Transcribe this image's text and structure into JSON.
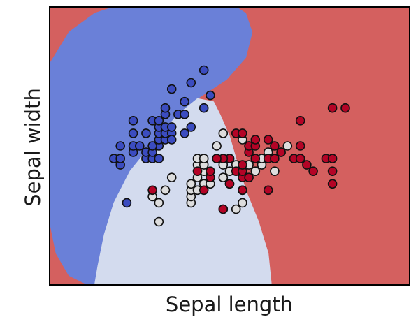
{
  "chart_data": {
    "type": "scatter",
    "title": "",
    "xlabel": "Sepal length",
    "ylabel": "Sepal width",
    "xlim": [
      3.3,
      8.9
    ],
    "ylim": [
      1.0,
      5.4
    ],
    "show_ticks": false,
    "grid": false,
    "legend": "none",
    "classes": [
      {
        "region_color": "#6a80d8",
        "point_color": "#3b4cc0"
      },
      {
        "region_color": "#d3dbee",
        "point_color": "#dddddd"
      },
      {
        "region_color": "#d4605f",
        "point_color": "#b40426"
      }
    ],
    "decision_regions": [
      {
        "class": 0,
        "polygon": [
          [
            3.3,
            2.8
          ],
          [
            3.3,
            4.5
          ],
          [
            3.6,
            5.0
          ],
          [
            4.0,
            5.3
          ],
          [
            4.3,
            5.4
          ],
          [
            6.2,
            5.4
          ],
          [
            6.35,
            5.3
          ],
          [
            6.45,
            5.0
          ],
          [
            6.35,
            4.6
          ],
          [
            6.05,
            4.25
          ],
          [
            5.6,
            3.95
          ],
          [
            5.3,
            3.7
          ],
          [
            4.95,
            3.3
          ],
          [
            4.55,
            2.8
          ],
          [
            4.3,
            2.3
          ],
          [
            4.15,
            1.8
          ],
          [
            4.05,
            1.3
          ],
          [
            4.0,
            1.0
          ],
          [
            3.9,
            1.0
          ],
          [
            3.6,
            1.15
          ],
          [
            3.4,
            1.5
          ],
          [
            3.3,
            2.0
          ]
        ]
      },
      {
        "class": 1,
        "polygon": [
          [
            4.0,
            1.0
          ],
          [
            4.05,
            1.3
          ],
          [
            4.15,
            1.8
          ],
          [
            4.3,
            2.3
          ],
          [
            4.55,
            2.8
          ],
          [
            4.95,
            3.3
          ],
          [
            5.3,
            3.7
          ],
          [
            5.6,
            3.95
          ],
          [
            5.85,
            3.9
          ],
          [
            5.95,
            3.7
          ],
          [
            6.1,
            3.35
          ],
          [
            6.2,
            3.0
          ],
          [
            6.35,
            2.5
          ],
          [
            6.55,
            2.0
          ],
          [
            6.7,
            1.5
          ],
          [
            6.75,
            1.0
          ]
        ]
      }
    ],
    "series": [
      {
        "class": 0,
        "points": [
          [
            4.3,
            3.0
          ],
          [
            4.4,
            2.9
          ],
          [
            4.4,
            3.0
          ],
          [
            4.4,
            3.2
          ],
          [
            4.5,
            2.3
          ],
          [
            4.6,
            3.1
          ],
          [
            4.6,
            3.2
          ],
          [
            4.6,
            3.4
          ],
          [
            4.6,
            3.6
          ],
          [
            4.7,
            3.2
          ],
          [
            4.8,
            3.0
          ],
          [
            4.8,
            3.1
          ],
          [
            4.8,
            3.4
          ],
          [
            4.9,
            3.0
          ],
          [
            4.9,
            3.1
          ],
          [
            4.9,
            3.6
          ],
          [
            5.0,
            3.0
          ],
          [
            5.0,
            3.2
          ],
          [
            5.0,
            3.3
          ],
          [
            5.0,
            3.4
          ],
          [
            5.0,
            3.5
          ],
          [
            5.0,
            3.6
          ],
          [
            5.1,
            3.3
          ],
          [
            5.1,
            3.4
          ],
          [
            5.1,
            3.5
          ],
          [
            5.1,
            3.7
          ],
          [
            5.1,
            3.8
          ],
          [
            5.2,
            3.4
          ],
          [
            5.2,
            3.5
          ],
          [
            5.2,
            4.1
          ],
          [
            5.3,
            3.7
          ],
          [
            5.4,
            3.4
          ],
          [
            5.4,
            3.7
          ],
          [
            5.4,
            3.9
          ],
          [
            5.5,
            3.5
          ],
          [
            5.5,
            4.2
          ],
          [
            5.7,
            3.8
          ],
          [
            5.7,
            4.4
          ],
          [
            5.8,
            4.0
          ],
          [
            5.2,
            3.3
          ],
          [
            4.9,
            3.2
          ]
        ]
      },
      {
        "class": 1,
        "points": [
          [
            4.9,
            2.4
          ],
          [
            5.0,
            2.0
          ],
          [
            5.0,
            2.3
          ],
          [
            5.1,
            2.5
          ],
          [
            5.2,
            2.7
          ],
          [
            5.5,
            2.3
          ],
          [
            5.5,
            2.4
          ],
          [
            5.5,
            2.5
          ],
          [
            5.5,
            2.6
          ],
          [
            5.6,
            2.5
          ],
          [
            5.6,
            2.7
          ],
          [
            5.6,
            2.9
          ],
          [
            5.6,
            3.0
          ],
          [
            5.7,
            2.6
          ],
          [
            5.7,
            2.8
          ],
          [
            5.7,
            2.9
          ],
          [
            5.7,
            3.0
          ],
          [
            5.8,
            2.6
          ],
          [
            5.8,
            2.7
          ],
          [
            5.9,
            3.0
          ],
          [
            5.9,
            3.2
          ],
          [
            6.0,
            2.2
          ],
          [
            6.0,
            2.7
          ],
          [
            6.0,
            2.9
          ],
          [
            6.0,
            3.4
          ],
          [
            6.1,
            2.8
          ],
          [
            6.1,
            3.0
          ],
          [
            6.2,
            2.2
          ],
          [
            6.2,
            2.9
          ],
          [
            6.3,
            2.3
          ],
          [
            6.3,
            2.5
          ],
          [
            6.3,
            3.3
          ],
          [
            6.4,
            2.9
          ],
          [
            6.4,
            3.2
          ],
          [
            6.5,
            2.8
          ],
          [
            6.6,
            2.9
          ],
          [
            6.6,
            3.0
          ],
          [
            6.7,
            3.1
          ],
          [
            6.8,
            2.8
          ],
          [
            6.9,
            3.1
          ],
          [
            7.0,
            3.2
          ],
          [
            6.7,
            3.0
          ]
        ]
      },
      {
        "class": 2,
        "points": [
          [
            4.9,
            2.5
          ],
          [
            5.6,
            2.8
          ],
          [
            5.7,
            2.5
          ],
          [
            5.8,
            2.7
          ],
          [
            5.8,
            2.8
          ],
          [
            5.9,
            3.0
          ],
          [
            6.0,
            2.2
          ],
          [
            6.1,
            2.6
          ],
          [
            6.2,
            2.8
          ],
          [
            6.2,
            3.4
          ],
          [
            6.3,
            2.5
          ],
          [
            6.3,
            2.7
          ],
          [
            6.3,
            2.8
          ],
          [
            6.3,
            2.9
          ],
          [
            6.3,
            3.4
          ],
          [
            6.4,
            2.7
          ],
          [
            6.4,
            3.1
          ],
          [
            6.4,
            3.2
          ],
          [
            6.5,
            3.0
          ],
          [
            6.5,
            3.2
          ],
          [
            6.7,
            2.5
          ],
          [
            6.7,
            3.0
          ],
          [
            6.7,
            3.3
          ],
          [
            6.8,
            3.0
          ],
          [
            6.8,
            3.2
          ],
          [
            6.9,
            3.1
          ],
          [
            7.1,
            3.0
          ],
          [
            7.2,
            3.2
          ],
          [
            7.2,
            3.6
          ],
          [
            7.3,
            2.9
          ],
          [
            7.6,
            3.0
          ],
          [
            7.7,
            2.6
          ],
          [
            7.7,
            2.8
          ],
          [
            7.7,
            3.0
          ],
          [
            7.7,
            3.8
          ],
          [
            7.9,
            3.8
          ],
          [
            6.1,
            3.0
          ],
          [
            6.0,
            3.0
          ],
          [
            5.9,
            3.0
          ],
          [
            6.5,
            3.3
          ],
          [
            7.4,
            2.8
          ],
          [
            7.2,
            3.0
          ],
          [
            6.1,
            2.6
          ]
        ]
      }
    ]
  }
}
